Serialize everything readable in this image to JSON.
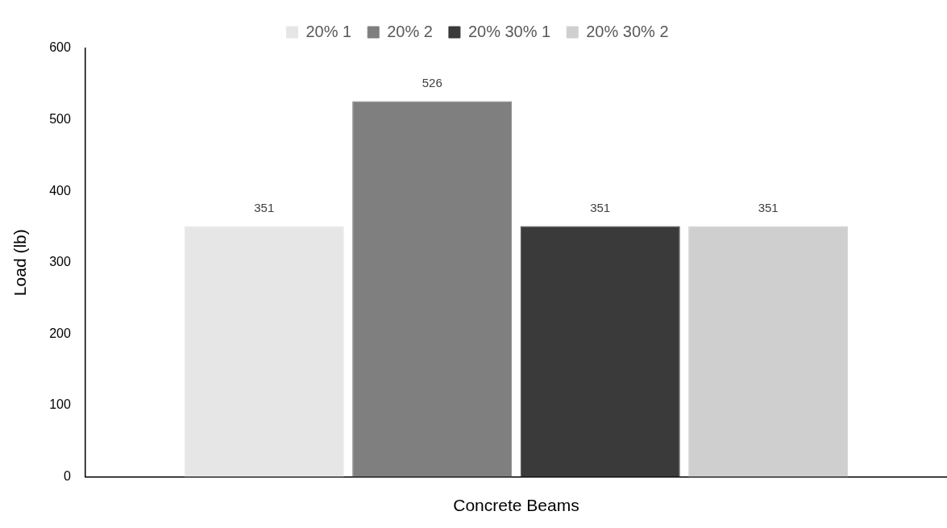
{
  "chart_data": {
    "type": "bar",
    "xlabel": "Concrete Beams",
    "ylabel": "Load (lb)",
    "categories": [
      null
    ],
    "series": [
      {
        "name": "20% 1",
        "color": "#e6e6e6",
        "values": [
          351
        ]
      },
      {
        "name": "20% 2",
        "color": "#7f7f7f",
        "values": [
          526
        ]
      },
      {
        "name": "20% 30% 1",
        "color": "#3a3a3a",
        "values": [
          351
        ]
      },
      {
        "name": "20% 30% 2",
        "color": "#cfcfcf",
        "values": [
          351
        ]
      }
    ],
    "ylim": [
      0,
      600
    ],
    "yticks": [
      0,
      100,
      200,
      300,
      400,
      500,
      600
    ],
    "grid": false,
    "legend": "top",
    "data_labels": true
  }
}
